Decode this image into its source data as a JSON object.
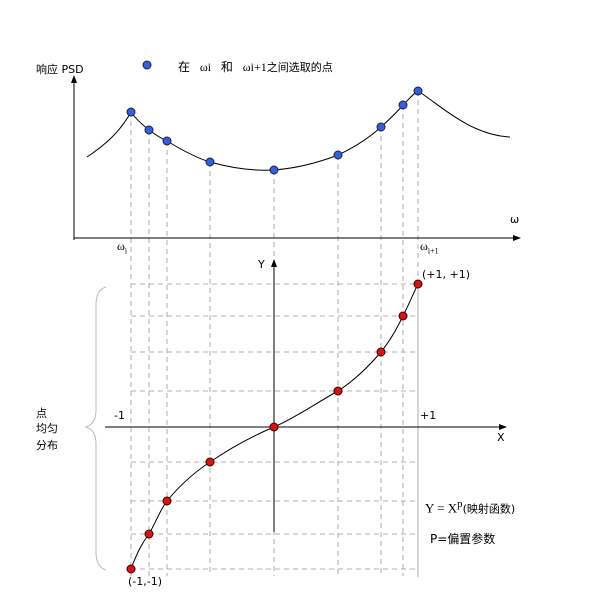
{
  "top_chart": {
    "y_axis_label": "响应 PSD",
    "x_axis_label": "ω",
    "legend": {
      "prefix": "在",
      "w_i": "ωi",
      "and": "和",
      "w_i1": "ωi+1",
      "suffix": "之间选取的点",
      "marker_color": "#2f5fe6"
    },
    "tick_left": {
      "base": "ω",
      "sub": "i"
    },
    "tick_right": {
      "base": "ω",
      "sub": "i+1"
    }
  },
  "bottom_chart": {
    "y_axis_label": "Y",
    "x_axis_label": "X",
    "tick_minus": "-1",
    "tick_plus": "+1",
    "corner_top": "(+1, +1)",
    "corner_bottom": "(-1,-1)",
    "brace_label": [
      "点",
      "均匀",
      "分布"
    ],
    "formula": {
      "lhs": "Y = X",
      "exp": "p",
      "note": "(映射函数)"
    },
    "param": "P=偏置参数",
    "marker_color": "#e01010"
  }
}
